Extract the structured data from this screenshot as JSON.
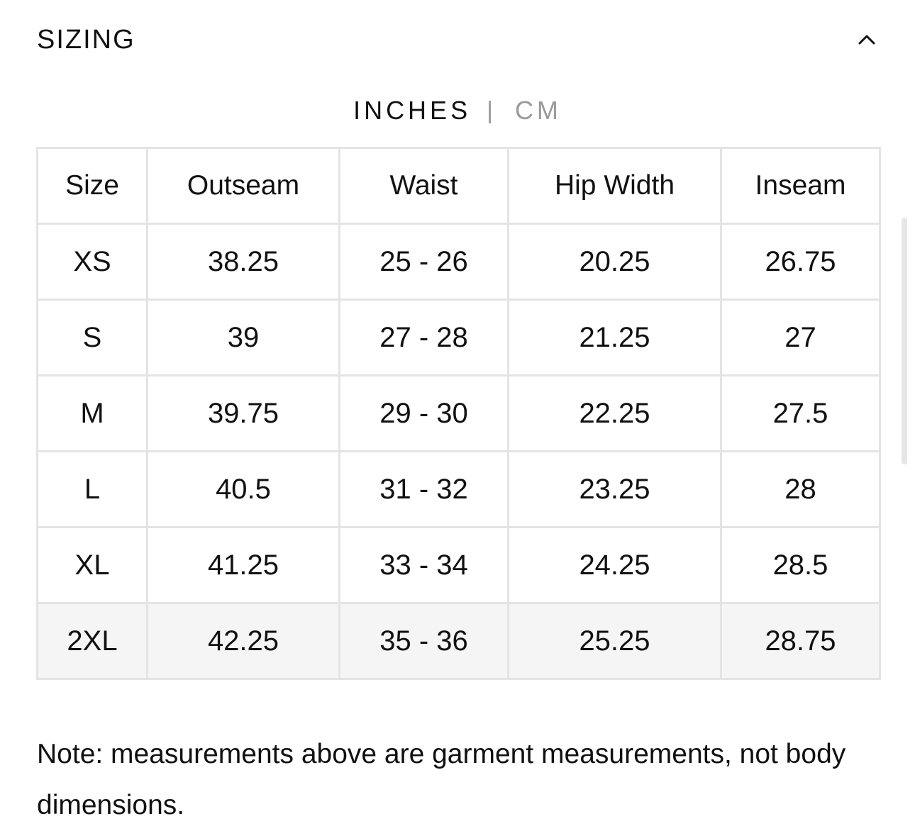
{
  "section": {
    "title": "SIZING"
  },
  "units": {
    "active": "INCHES",
    "separator": "|",
    "inactive": "CM"
  },
  "table": {
    "headers": [
      "Size",
      "Outseam",
      "Waist",
      "Hip Width",
      "Inseam"
    ],
    "rows": [
      [
        "XS",
        "38.25",
        "25 - 26",
        "20.25",
        "26.75"
      ],
      [
        "S",
        "39",
        "27 - 28",
        "21.25",
        "27"
      ],
      [
        "M",
        "39.75",
        "29 - 30",
        "22.25",
        "27.5"
      ],
      [
        "L",
        "40.5",
        "31 - 32",
        "23.25",
        "28"
      ],
      [
        "XL",
        "41.25",
        "33 - 34",
        "24.25",
        "28.5"
      ],
      [
        "2XL",
        "42.25",
        "35 - 36",
        "25.25",
        "28.75"
      ]
    ]
  },
  "note": "Note: measurements above are garment measurements, not body dimensions.",
  "icons": {
    "collapse": "chevron-up-icon"
  },
  "colors": {
    "text": "#111111",
    "muted": "#9a9a9a",
    "border": "#e4e4e4",
    "highlight_row": "#f5f5f5"
  }
}
